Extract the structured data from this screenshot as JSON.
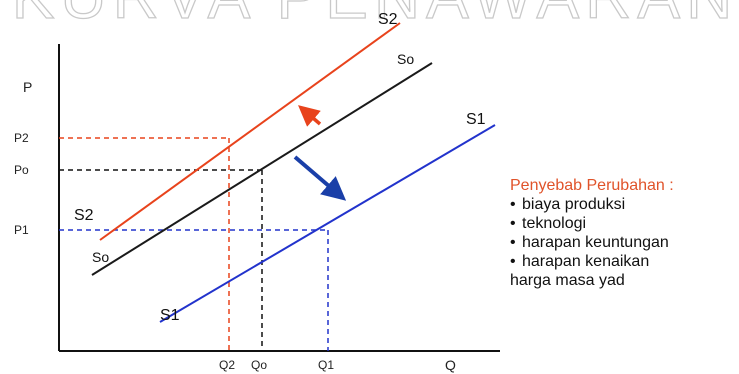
{
  "title": "KURVA PENAWARAN",
  "colors": {
    "s2": "#e8431c",
    "so": "#1a1a1a",
    "s1": "#2233cc",
    "arrow_up": "#e8431c",
    "arrow_down": "#1a3fa8",
    "causes_title": "#e0532a"
  },
  "axes": {
    "y_label": "P",
    "x_label": "Q",
    "y_ticks": [
      "P2",
      "Po",
      "P1"
    ],
    "x_ticks": [
      "Q2",
      "Qo",
      "Q1"
    ]
  },
  "curves": {
    "s2": {
      "top_label": "S2",
      "bottom_label": "S2"
    },
    "so": {
      "top_label": "So",
      "bottom_label": "So"
    },
    "s1": {
      "top_label": "S1",
      "bottom_label": "S1"
    }
  },
  "causes": {
    "title": "Penyebab Perubahan :",
    "bullet": "•",
    "items": [
      "biaya produksi",
      "teknologi",
      "harapan keuntungan",
      "harapan kenaikan"
    ],
    "last_item_second_line": "harga masa yad"
  }
}
